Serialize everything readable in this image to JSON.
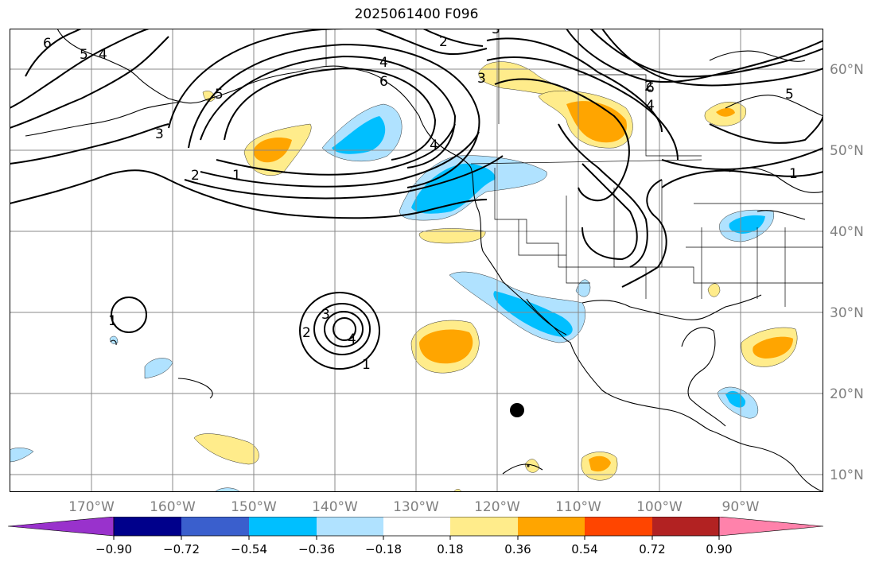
{
  "title": "2025061400 F096",
  "lon_ticks": [
    "170°W",
    "160°W",
    "150°W",
    "140°W",
    "130°W",
    "120°W",
    "110°W",
    "100°W",
    "90°W"
  ],
  "lat_ticks": [
    "60°N",
    "50°N",
    "40°N",
    "30°N",
    "20°N",
    "10°N"
  ],
  "contour_labels": [
    "6",
    "5",
    "4",
    "3",
    "2",
    "1",
    "2",
    "4",
    "3",
    "6",
    "4",
    "5",
    "3",
    "2",
    "5",
    "6",
    "4",
    "1",
    "2",
    "3",
    "4",
    "1",
    "1"
  ],
  "colorbar": {
    "ticks": [
      "−0.90",
      "−0.72",
      "−0.54",
      "−0.36",
      "−0.18",
      "0.18",
      "0.36",
      "0.54",
      "0.72",
      "0.90"
    ],
    "colors": [
      "#9932CC",
      "#00008B",
      "#3A5FCD",
      "#00BFFF",
      "#B0E2FF",
      "#FFFFFF",
      "#FFEC8B",
      "#FFA500",
      "#FF4500",
      "#B22222",
      "#FF82AB"
    ]
  },
  "fill_colors": {
    "light_blue": "#B0E2FF",
    "blue": "#00BFFF",
    "light_orange": "#FFEC8B",
    "orange": "#FFA500"
  }
}
